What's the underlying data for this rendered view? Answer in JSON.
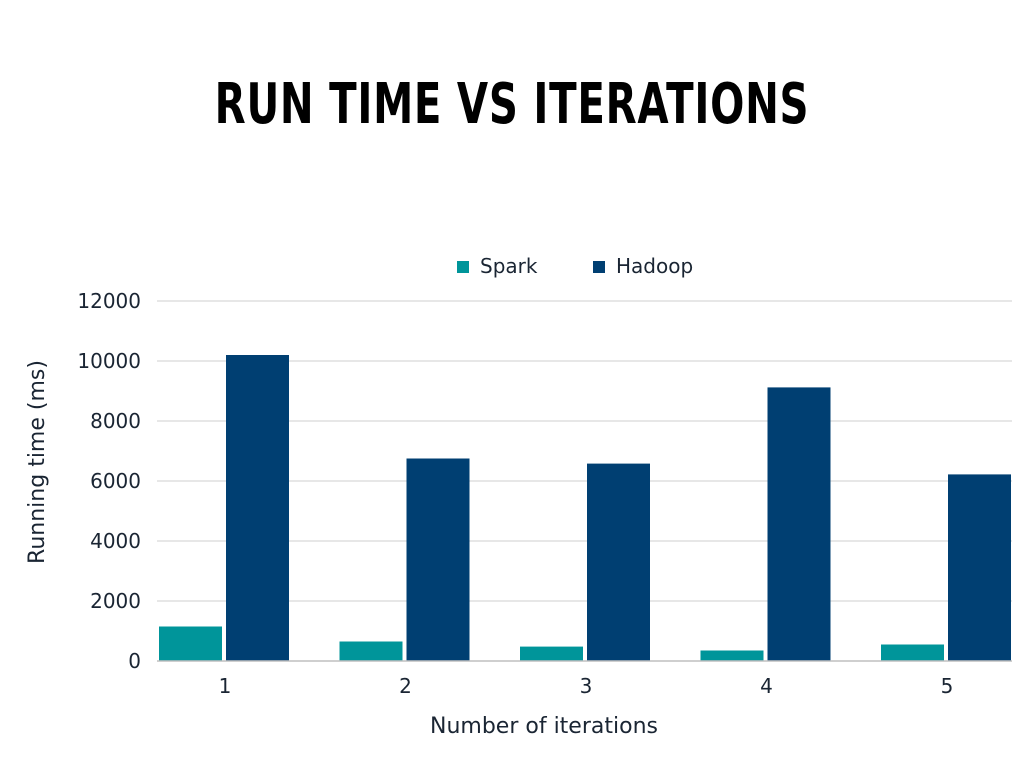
{
  "chart_data": {
    "type": "bar",
    "title": "RUN TIME VS ITERATIONS",
    "xlabel": "Number of iterations",
    "ylabel": "Running time (ms)",
    "categories": [
      "1",
      "2",
      "3",
      "4",
      "5"
    ],
    "series": [
      {
        "name": "Spark",
        "color": "#00959A",
        "values": [
          1150,
          650,
          480,
          350,
          550
        ]
      },
      {
        "name": "Hadoop",
        "color": "#003F72",
        "values": [
          10200,
          6750,
          6580,
          9120,
          6220
        ]
      }
    ],
    "ylim": [
      0,
      12000
    ],
    "yticks": [
      "0",
      "2000",
      "4000",
      "6000",
      "8000",
      "10000",
      "12000"
    ],
    "grid": true,
    "legend_position": "top-center"
  }
}
